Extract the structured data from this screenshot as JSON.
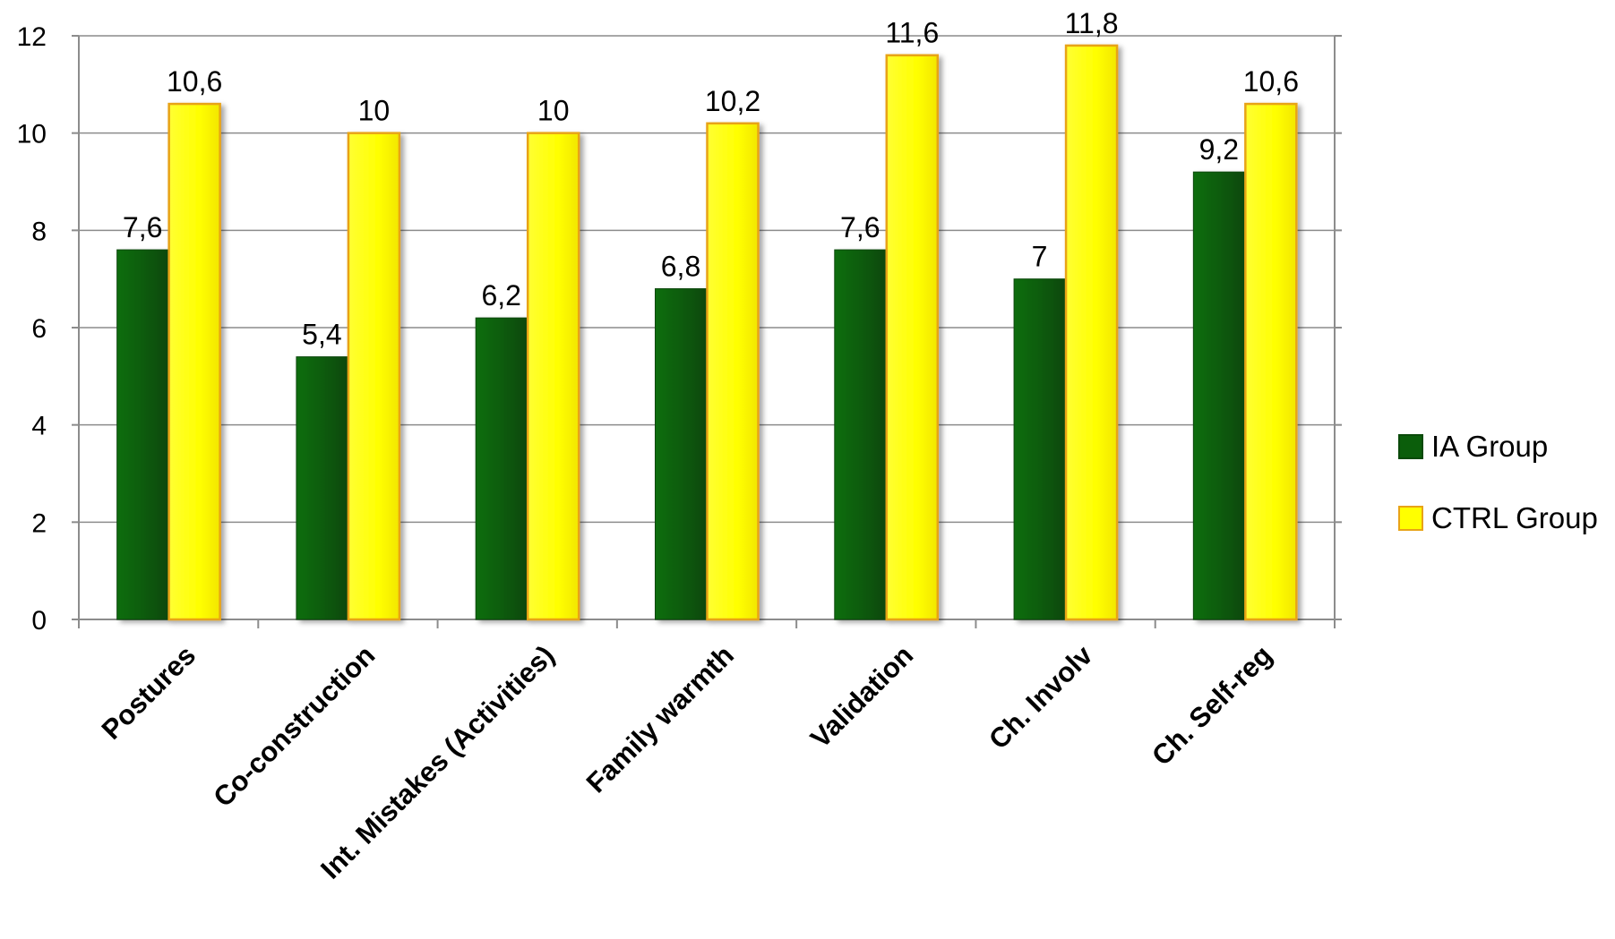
{
  "chart_data": {
    "type": "bar",
    "categories": [
      "Postures",
      "Co-construction",
      "Int. Mistakes (Activities)",
      "Family warmth",
      "Validation",
      "Ch. Involv",
      "Ch. Self-reg"
    ],
    "series": [
      {
        "name": "IA Group",
        "values": [
          7.6,
          5.4,
          6.2,
          6.8,
          7.6,
          7,
          9.2
        ],
        "labels": [
          "7,6",
          "5,4",
          "6,2",
          "6,8",
          "7,6",
          "7",
          "9,2"
        ],
        "color": "#0b5e0b",
        "stroke": "#0a4a0a"
      },
      {
        "name": "CTRL Group",
        "values": [
          10.6,
          10,
          10,
          10.2,
          11.6,
          11.8,
          10.6
        ],
        "labels": [
          "10,6",
          "10",
          "10",
          "10,2",
          "11,6",
          "11,8",
          "10,6"
        ],
        "color": "#ffff00",
        "stroke": "#e8a317"
      }
    ],
    "title": "",
    "xlabel": "",
    "ylabel": "",
    "ylim": [
      0,
      12
    ],
    "yticks": [
      0,
      2,
      4,
      6,
      8,
      10,
      12
    ],
    "grid": true,
    "legend": "right"
  }
}
